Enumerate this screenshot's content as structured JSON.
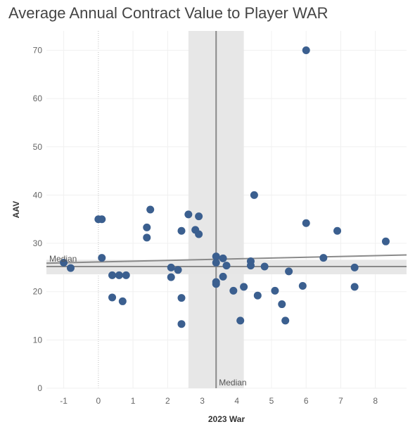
{
  "chart_data": {
    "type": "scatter",
    "title": "Average Annual Contract Value to Player WAR",
    "xlabel": "2023 War",
    "ylabel": "AAV",
    "xlim": [
      -1.5,
      8.9
    ],
    "ylim": [
      0,
      74
    ],
    "xticks": [
      "-1",
      "0",
      "1",
      "2",
      "3",
      "4",
      "5",
      "6",
      "7",
      "8"
    ],
    "yticks": [
      "0",
      "10",
      "20",
      "30",
      "40",
      "50",
      "60",
      "70"
    ],
    "grid": true,
    "colors": {
      "points": "#3b5f8f",
      "band": "#e6e6e6",
      "median_line": "#8a8a8a",
      "trend_line": "#8a8a8a",
      "zero_line": "#bdbdbd"
    },
    "x_median": {
      "label": "Median",
      "value": 3.4,
      "band": [
        2.6,
        4.2
      ]
    },
    "y_median": {
      "label": "Median",
      "value": 25.2,
      "band": [
        23.6,
        26.6
      ]
    },
    "trend_line": {
      "x": [
        -1.5,
        8.9
      ],
      "y": [
        25.9,
        27.6
      ]
    },
    "points": [
      {
        "x": 6.0,
        "y": 70.0
      },
      {
        "x": 4.5,
        "y": 40.0
      },
      {
        "x": 1.5,
        "y": 37.0
      },
      {
        "x": 2.6,
        "y": 36.0
      },
      {
        "x": 2.9,
        "y": 35.6
      },
      {
        "x": 0.0,
        "y": 35.0
      },
      {
        "x": 0.1,
        "y": 35.0
      },
      {
        "x": 6.0,
        "y": 34.2
      },
      {
        "x": 1.4,
        "y": 33.3
      },
      {
        "x": 2.4,
        "y": 32.6
      },
      {
        "x": 2.8,
        "y": 32.8
      },
      {
        "x": 6.9,
        "y": 32.6
      },
      {
        "x": 2.9,
        "y": 31.9
      },
      {
        "x": 1.4,
        "y": 31.2
      },
      {
        "x": 8.3,
        "y": 30.4
      },
      {
        "x": 3.4,
        "y": 27.3
      },
      {
        "x": 0.1,
        "y": 27.0
      },
      {
        "x": 3.6,
        "y": 26.9
      },
      {
        "x": 6.5,
        "y": 27.0
      },
      {
        "x": 4.4,
        "y": 26.3
      },
      {
        "x": -1.0,
        "y": 26.0
      },
      {
        "x": 3.4,
        "y": 26.0
      },
      {
        "x": 3.7,
        "y": 25.4
      },
      {
        "x": 4.4,
        "y": 25.4
      },
      {
        "x": 4.8,
        "y": 25.2
      },
      {
        "x": -0.8,
        "y": 24.9
      },
      {
        "x": 2.1,
        "y": 25.0
      },
      {
        "x": 7.4,
        "y": 25.0
      },
      {
        "x": 2.3,
        "y": 24.5
      },
      {
        "x": 5.5,
        "y": 24.2
      },
      {
        "x": 0.4,
        "y": 23.4
      },
      {
        "x": 0.6,
        "y": 23.4
      },
      {
        "x": 0.8,
        "y": 23.4
      },
      {
        "x": 2.1,
        "y": 23.0
      },
      {
        "x": 3.6,
        "y": 23.1
      },
      {
        "x": 3.4,
        "y": 22.0
      },
      {
        "x": 3.4,
        "y": 21.6
      },
      {
        "x": 4.2,
        "y": 21.0
      },
      {
        "x": 5.9,
        "y": 21.2
      },
      {
        "x": 7.4,
        "y": 21.0
      },
      {
        "x": 3.9,
        "y": 20.2
      },
      {
        "x": 5.1,
        "y": 20.2
      },
      {
        "x": 4.6,
        "y": 19.2
      },
      {
        "x": 0.4,
        "y": 18.8
      },
      {
        "x": 2.4,
        "y": 18.7
      },
      {
        "x": 0.7,
        "y": 18.0
      },
      {
        "x": 5.3,
        "y": 17.4
      },
      {
        "x": 4.1,
        "y": 14.0
      },
      {
        "x": 5.4,
        "y": 14.0
      },
      {
        "x": 2.4,
        "y": 13.3
      }
    ]
  }
}
